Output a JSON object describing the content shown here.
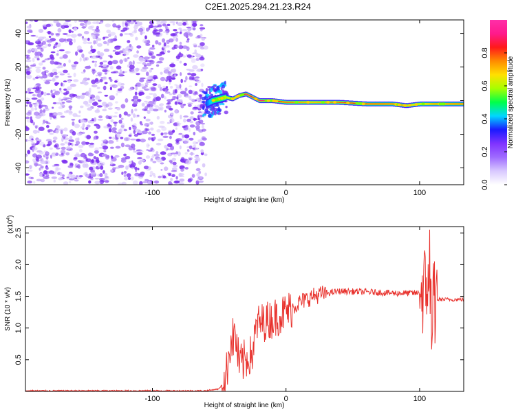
{
  "title": "C2E1.2025.294.21.23.R24",
  "chart_data": [
    {
      "type": "heatmap",
      "xlabel": "Height of straight line (km)",
      "ylabel": "Frequency (Hz)",
      "xlim": [
        -195,
        133
      ],
      "ylim": [
        -50,
        48
      ],
      "xticks": [
        -100,
        0,
        100
      ],
      "yticks": [
        -40,
        -20,
        0,
        20,
        40
      ],
      "ridge": {
        "x": [
          -60,
          -55,
          -50,
          -45,
          -40,
          -35,
          -30,
          -25,
          -20,
          -10,
          0,
          10,
          20,
          40,
          60,
          80,
          90,
          100,
          110,
          133
        ],
        "freq": [
          -2,
          0,
          1,
          2,
          1,
          3,
          4,
          2,
          0,
          0,
          -1,
          -1,
          -1,
          -1,
          -2,
          -2,
          -3,
          -2,
          -2,
          -2
        ],
        "amplitude": [
          0.35,
          0.45,
          0.55,
          0.6,
          0.65,
          0.7,
          0.9,
          0.85,
          0.9,
          0.9,
          0.8,
          0.75,
          0.7,
          0.8,
          0.85,
          0.8,
          0.7,
          0.6,
          0.75,
          0.8
        ]
      },
      "noise_region": [
        -195,
        -62
      ]
    },
    {
      "type": "line",
      "xlabel": "Height of straight line (km)",
      "ylabel": "SNR (10 * v/v)",
      "scale_label": "(x10",
      "scale_exp": "4",
      "scale_close": ")",
      "xlim": [
        -195,
        133
      ],
      "ylim": [
        0,
        2.6
      ],
      "xticks": [
        -100,
        0,
        100
      ],
      "yticks": [
        0.5,
        1.0,
        1.5,
        2.0,
        2.5
      ],
      "series": [
        {
          "name": "SNR",
          "color": "#e8322d",
          "envelope": {
            "x": [
              -195,
              -60,
              -50,
              -45,
              -42,
              -38,
              -35,
              -25,
              -22,
              -10,
              0,
              10,
              20,
              30,
              40,
              60,
              80,
              98,
              104,
              108,
              110,
              113,
              118,
              133
            ],
            "y": [
              0.01,
              0.01,
              0.04,
              0.2,
              0.75,
              0.9,
              0.4,
              0.6,
              1.05,
              1.15,
              1.25,
              1.4,
              1.5,
              1.55,
              1.58,
              1.57,
              1.55,
              1.55,
              1.6,
              1.4,
              1.3,
              1.45,
              1.45,
              1.45
            ]
          }
        }
      ]
    },
    {
      "type": "colorbar",
      "label": "Normalized spectral amplitude",
      "range": [
        0.0,
        1.0
      ],
      "ticks": [
        "0.0",
        "0.2",
        "0.4",
        "0.6",
        "0.8"
      ],
      "stops": [
        "#ffffff",
        "#d8c8ff",
        "#9f6bff",
        "#7f33ff",
        "#1a1aff",
        "#00d6ff",
        "#00ff4a",
        "#a6ff00",
        "#ffe000",
        "#ff8c00",
        "#ff1a1a",
        "#ff1a8c",
        "#ff2fa8"
      ]
    }
  ]
}
